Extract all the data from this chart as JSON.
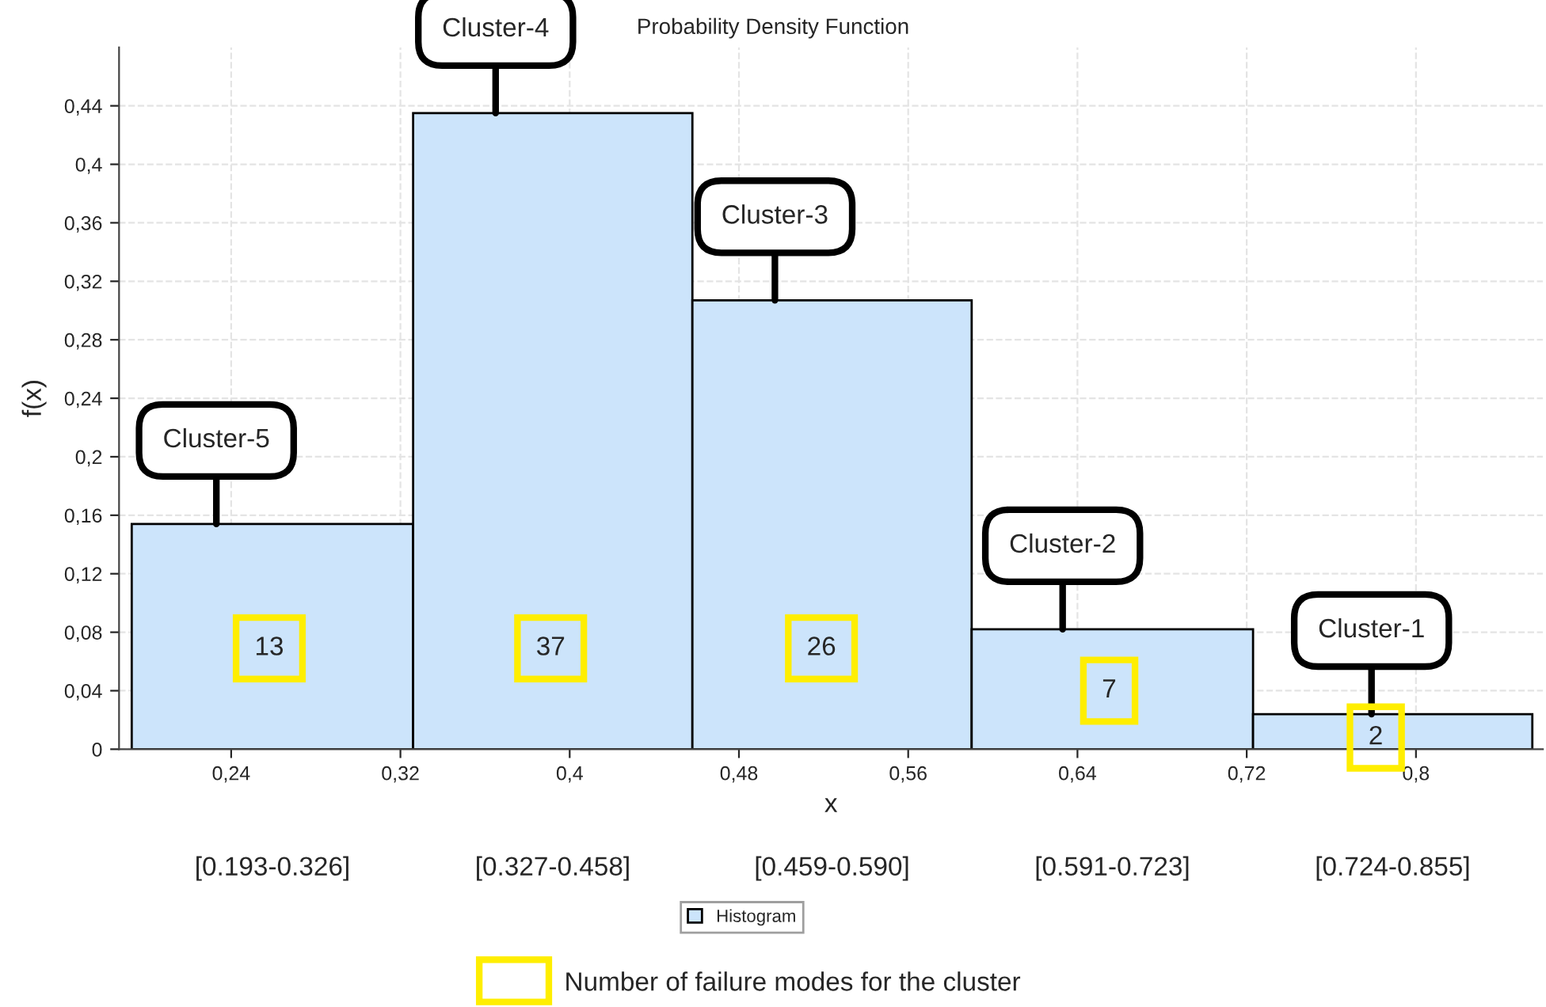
{
  "chart_data": {
    "type": "histogram",
    "title": "Probability Density Function",
    "xlabel": "x",
    "ylabel": "f(x)",
    "bins": [
      0.193,
      0.326,
      0.458,
      0.59,
      0.723,
      0.855
    ],
    "series": [
      {
        "name": "Histogram",
        "color": "#cce4fb",
        "values": [
          0.154,
          0.435,
          0.307,
          0.082,
          0.024
        ]
      }
    ],
    "xlim": [
      0.187,
      0.86
    ],
    "ylim": [
      0,
      0.48
    ],
    "xticks": [
      {
        "value": 0.24,
        "label": "0,24"
      },
      {
        "value": 0.32,
        "label": "0,32"
      },
      {
        "value": 0.4,
        "label": "0,4"
      },
      {
        "value": 0.48,
        "label": "0,48"
      },
      {
        "value": 0.56,
        "label": "0,56"
      },
      {
        "value": 0.64,
        "label": "0,64"
      },
      {
        "value": 0.72,
        "label": "0,72"
      },
      {
        "value": 0.8,
        "label": "0,8"
      }
    ],
    "yticks": [
      0,
      {
        "value": 0.04,
        "label": "0,04"
      },
      {
        "value": 0.08,
        "label": "0,08"
      },
      {
        "value": 0.12,
        "label": "0,12"
      },
      {
        "value": 0.16,
        "label": "0,16"
      },
      {
        "value": 0.2,
        "label": "0,2"
      },
      {
        "value": 0.24,
        "label": "0,24"
      },
      {
        "value": 0.28,
        "label": "0,28"
      },
      {
        "value": 0.32,
        "label": "0,32"
      },
      {
        "value": 0.36,
        "label": "0,36"
      },
      {
        "value": 0.4,
        "label": "0,4"
      },
      {
        "value": 0.44,
        "label": "0,44"
      }
    ],
    "grid": true,
    "legend": "bottom",
    "annotations": [
      {
        "text": "Cluster-5",
        "x": 0.233,
        "y": 0.154
      },
      {
        "text": "Cluster-4",
        "x": 0.365,
        "y": 0.435
      },
      {
        "text": "Cluster-3",
        "x": 0.497,
        "y": 0.307
      },
      {
        "text": "Cluster-2",
        "x": 0.633,
        "y": 0.082
      },
      {
        "text": "Cluster-1",
        "x": 0.779,
        "y": 0.024
      },
      {
        "text": "13",
        "x": 0.258,
        "y": 0.069
      },
      {
        "text": "37",
        "x": 0.391,
        "y": 0.069
      },
      {
        "text": "26",
        "x": 0.519,
        "y": 0.069
      },
      {
        "text": "7",
        "x": 0.655,
        "y": 0.04
      },
      {
        "text": "2",
        "x": 0.781,
        "y": 0.008
      },
      "[0.193-0.326]",
      "[0.327-0.458]",
      "[0.459-0.590]",
      "[0.591-0.723]",
      "[0.724-0.855]",
      "Number of failure modes for the cluster"
    ]
  }
}
